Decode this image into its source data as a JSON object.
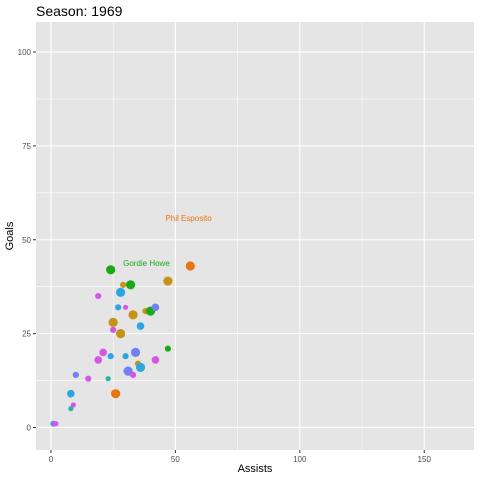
{
  "chart_data": {
    "type": "scatter",
    "title": "Season: 1969",
    "xlabel": "Assists",
    "ylabel": "Goals",
    "xlim": [
      -6,
      170
    ],
    "ylim": [
      -6,
      108
    ],
    "x_ticks": [
      0,
      50,
      100,
      150
    ],
    "y_ticks": [
      0,
      25,
      50,
      75,
      100
    ],
    "grid": true,
    "legend": "none",
    "colors": {
      "panel": "#E5E5E5",
      "grid": "#FFFFFF",
      "green": "#1AA91A",
      "orange": "#E7760E",
      "gold": "#C59416",
      "blue": "#2CA5E0",
      "periwinkle": "#6F83F0",
      "magenta": "#D656E7",
      "teal": "#1FB7A0"
    },
    "points": [
      {
        "x": 1,
        "y": 1,
        "size": 3,
        "color": "periwinkle"
      },
      {
        "x": 2,
        "y": 1,
        "size": 2,
        "color": "magenta"
      },
      {
        "x": 8,
        "y": 5,
        "size": 2,
        "color": "teal"
      },
      {
        "x": 9,
        "y": 6,
        "size": 2,
        "color": "magenta"
      },
      {
        "x": 8,
        "y": 9,
        "size": 4,
        "color": "blue"
      },
      {
        "x": 10,
        "y": 14,
        "size": 3,
        "color": "periwinkle"
      },
      {
        "x": 15,
        "y": 13,
        "size": 3,
        "color": "magenta"
      },
      {
        "x": 19,
        "y": 35,
        "size": 3,
        "color": "magenta"
      },
      {
        "x": 19,
        "y": 18,
        "size": 4,
        "color": "magenta"
      },
      {
        "x": 21,
        "y": 20,
        "size": 4,
        "color": "magenta"
      },
      {
        "x": 23,
        "y": 13,
        "size": 2,
        "color": "teal"
      },
      {
        "x": 24,
        "y": 19,
        "size": 3,
        "color": "blue"
      },
      {
        "x": 24,
        "y": 42,
        "size": 5,
        "color": "green"
      },
      {
        "x": 25,
        "y": 28,
        "size": 5,
        "color": "gold"
      },
      {
        "x": 25,
        "y": 26,
        "size": 3,
        "color": "magenta"
      },
      {
        "x": 26,
        "y": 9,
        "size": 5,
        "color": "orange"
      },
      {
        "x": 27,
        "y": 32,
        "size": 3,
        "color": "blue"
      },
      {
        "x": 28,
        "y": 36,
        "size": 5,
        "color": "blue"
      },
      {
        "x": 28,
        "y": 25,
        "size": 5,
        "color": "gold"
      },
      {
        "x": 29,
        "y": 38,
        "size": 3,
        "color": "gold"
      },
      {
        "x": 30,
        "y": 32,
        "size": 2,
        "color": "magenta"
      },
      {
        "x": 30,
        "y": 19,
        "size": 3,
        "color": "blue"
      },
      {
        "x": 31,
        "y": 15,
        "size": 5,
        "color": "periwinkle"
      },
      {
        "x": 32,
        "y": 38,
        "size": 5,
        "color": "green"
      },
      {
        "x": 33,
        "y": 30,
        "size": 5,
        "color": "gold"
      },
      {
        "x": 33,
        "y": 14,
        "size": 3,
        "color": "magenta"
      },
      {
        "x": 34,
        "y": 20,
        "size": 5,
        "color": "periwinkle"
      },
      {
        "x": 35,
        "y": 17,
        "size": 3,
        "color": "gold"
      },
      {
        "x": 36,
        "y": 27,
        "size": 4,
        "color": "blue"
      },
      {
        "x": 36,
        "y": 16,
        "size": 5,
        "color": "blue"
      },
      {
        "x": 38,
        "y": 31,
        "size": 3,
        "color": "gold"
      },
      {
        "x": 40,
        "y": 31,
        "size": 5,
        "color": "green"
      },
      {
        "x": 42,
        "y": 32,
        "size": 4,
        "color": "periwinkle"
      },
      {
        "x": 42,
        "y": 18,
        "size": 4,
        "color": "magenta"
      },
      {
        "x": 47,
        "y": 21,
        "size": 3,
        "color": "green"
      },
      {
        "x": 47,
        "y": 39,
        "size": 5,
        "color": "gold"
      },
      {
        "x": 56,
        "y": 43,
        "size": 5,
        "color": "orange"
      }
    ],
    "annotations": [
      {
        "text": "Gordie Howe",
        "x": 29,
        "y": 43,
        "color": "green"
      },
      {
        "text": "Phil Esposito",
        "x": 46,
        "y": 55,
        "color": "orange"
      }
    ]
  }
}
